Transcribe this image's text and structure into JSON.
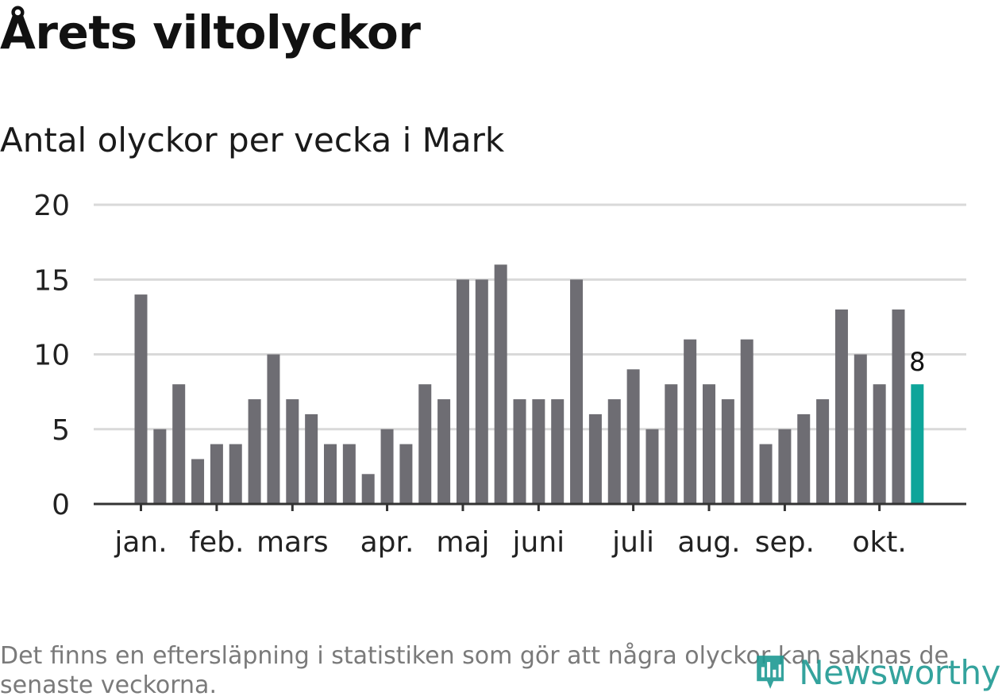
{
  "title": "Årets viltolyckor",
  "subtitle": "Antal olyckor per vecka i Mark",
  "footnote": "Det finns en eftersläpning i statistiken som gör att några olyckor kan saknas de senaste veckorna.",
  "logo_text": "Newsworthy",
  "colors": {
    "bar": "#6e6d73",
    "highlight": "#0ea59a",
    "grid": "#d9d9d9",
    "axis": "#333333",
    "logo": "#1f9a93"
  },
  "chart_data": {
    "type": "bar",
    "title": "Antal olyckor per vecka i Mark",
    "xlabel": "",
    "ylabel": "",
    "ylim": [
      0,
      20
    ],
    "yticks": [
      0,
      5,
      10,
      15,
      20
    ],
    "grid": true,
    "x_tick_labels": [
      {
        "label": "jan.",
        "week": 1
      },
      {
        "label": "feb.",
        "week": 5
      },
      {
        "label": "mars",
        "week": 9
      },
      {
        "label": "apr.",
        "week": 14
      },
      {
        "label": "maj",
        "week": 18
      },
      {
        "label": "juni",
        "week": 22
      },
      {
        "label": "juli",
        "week": 27
      },
      {
        "label": "aug.",
        "week": 31
      },
      {
        "label": "sep.",
        "week": 35
      },
      {
        "label": "okt.",
        "week": 40
      }
    ],
    "values": [
      14,
      5,
      8,
      3,
      4,
      4,
      7,
      10,
      7,
      6,
      4,
      4,
      2,
      5,
      4,
      8,
      7,
      15,
      15,
      16,
      7,
      7,
      7,
      15,
      6,
      7,
      9,
      5,
      8,
      11,
      8,
      7,
      11,
      4,
      5,
      6,
      7,
      13,
      10,
      8,
      13,
      8
    ],
    "highlight_index": 41,
    "highlight_label": "8"
  }
}
